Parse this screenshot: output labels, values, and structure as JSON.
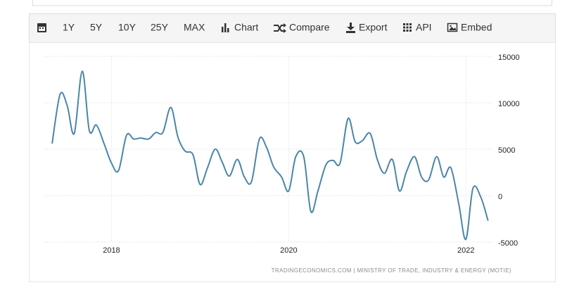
{
  "toolbar": [
    "1Y",
    "5Y",
    "10Y",
    "25Y",
    "MAX",
    "Chart",
    "Compare",
    "Export",
    "API",
    "Embed"
  ],
  "chart_data": {
    "type": "line",
    "source": "TRADINGECONOMICS.COM | MINISTRY OF TRADE, INDUSTRY & ENERGY (MOTIE)",
    "x": [
      2017.33,
      2017.42,
      2017.5,
      2017.58,
      2017.67,
      2017.75,
      2017.83,
      2017.92,
      2018.0,
      2018.08,
      2018.17,
      2018.25,
      2018.33,
      2018.42,
      2018.5,
      2018.58,
      2018.67,
      2018.75,
      2018.83,
      2018.92,
      2019.0,
      2019.08,
      2019.17,
      2019.25,
      2019.33,
      2019.42,
      2019.5,
      2019.58,
      2019.67,
      2019.75,
      2019.83,
      2019.92,
      2020.0,
      2020.08,
      2020.17,
      2020.25,
      2020.33,
      2020.42,
      2020.5,
      2020.58,
      2020.67,
      2020.75,
      2020.83,
      2020.92,
      2021.0,
      2021.08,
      2021.17,
      2021.25,
      2021.33,
      2021.42,
      2021.5,
      2021.58,
      2021.67,
      2021.75,
      2021.83,
      2021.92,
      2022.0,
      2022.08,
      2022.17,
      2022.25
    ],
    "series": [
      {
        "color": "#4a86a8",
        "values": [
          5600,
          10900,
          9700,
          6700,
          13400,
          7000,
          7600,
          5500,
          3500,
          2700,
          6500,
          6100,
          6200,
          6100,
          6800,
          6800,
          9500,
          6300,
          4800,
          4400,
          1200,
          2900,
          5000,
          3600,
          2100,
          3900,
          2000,
          1500,
          6100,
          5200,
          3100,
          2000,
          500,
          4200,
          4200,
          -1700,
          500,
          3300,
          3800,
          3500,
          8300,
          5800,
          5900,
          6700,
          3900,
          2400,
          3900,
          500,
          2600,
          4200,
          2000,
          1700,
          4200,
          2000,
          3000,
          -900,
          -4700,
          800,
          -200,
          -2700
        ]
      }
    ],
    "xlim": [
      2017.25,
      2022.3
    ],
    "xticks": [
      2018,
      2020,
      2022
    ],
    "ylim": [
      -5000,
      15000
    ],
    "yticks": [
      -5000,
      0,
      5000,
      10000,
      15000
    ],
    "grid": true
  }
}
